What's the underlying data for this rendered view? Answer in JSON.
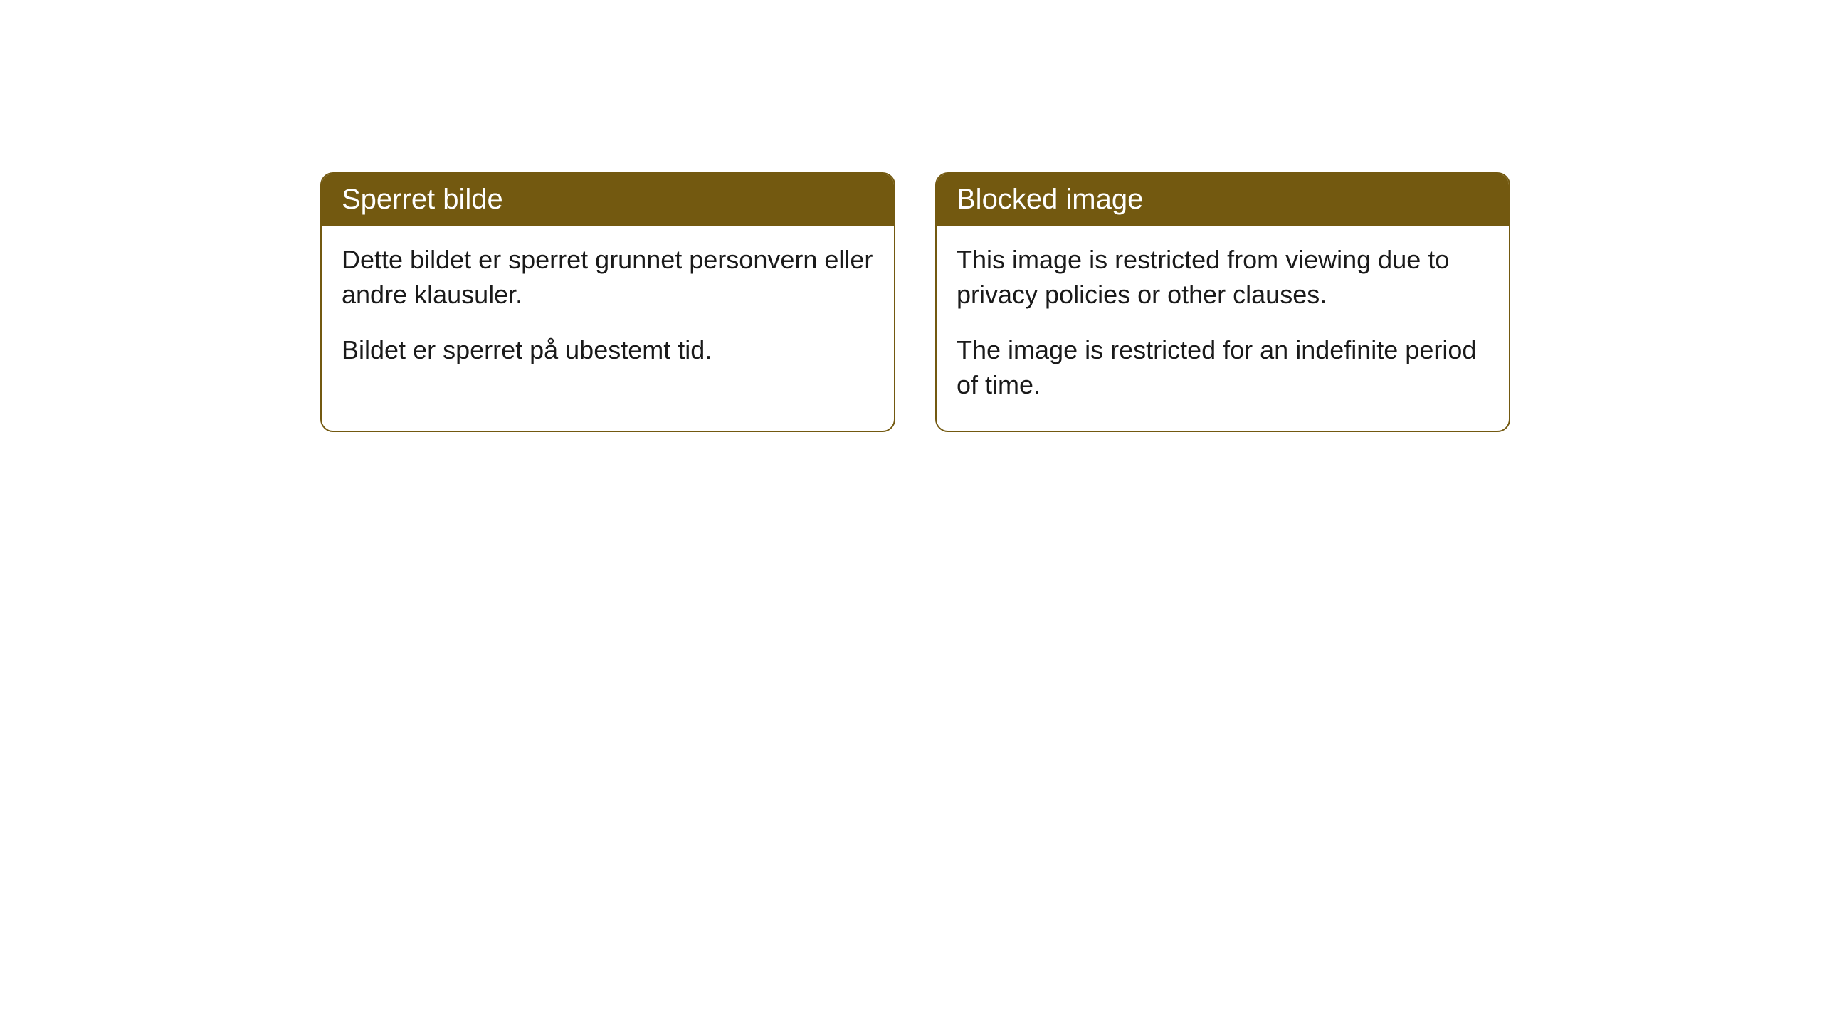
{
  "cards": [
    {
      "title": "Sperret bilde",
      "paragraph1": "Dette bildet er sperret grunnet personvern eller andre klausuler.",
      "paragraph2": "Bildet er sperret på ubestemt tid."
    },
    {
      "title": "Blocked image",
      "paragraph1": "This image is restricted from viewing due to privacy policies or other clauses.",
      "paragraph2": "The image is restricted for an indefinite period of time."
    }
  ],
  "styling": {
    "header_background_color": "#735910",
    "header_text_color": "#ffffff",
    "border_color": "#735910",
    "body_text_color": "#1a1a1a",
    "page_background_color": "#ffffff",
    "border_radius": 18,
    "header_fontsize": 40,
    "body_fontsize": 36
  }
}
